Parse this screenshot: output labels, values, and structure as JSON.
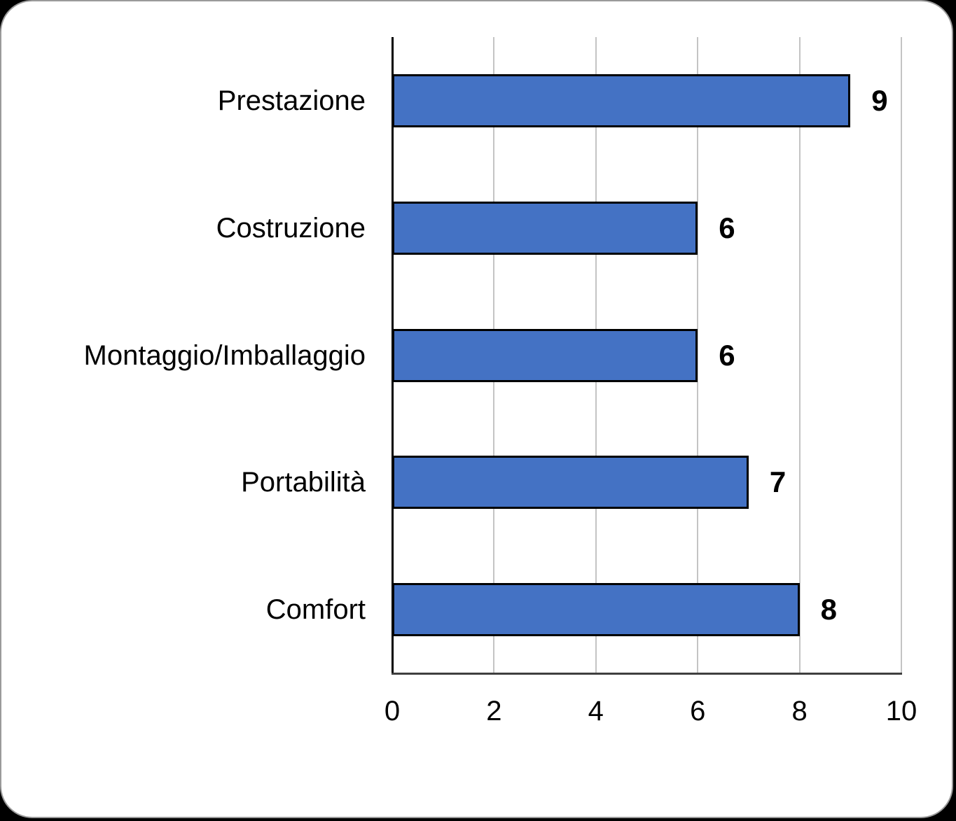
{
  "page": {
    "background_color": "#000000",
    "card_background_color": "#ffffff",
    "card_border_color": "#9a9a9a"
  },
  "chart_data": {
    "type": "bar",
    "orientation": "horizontal",
    "title": "",
    "xlabel": "",
    "ylabel": "",
    "categories": [
      "Prestazione",
      "Costruzione",
      "Montaggio/Imballaggio",
      "Portabilità",
      "Comfort"
    ],
    "values": [
      9,
      6,
      6,
      7,
      8
    ],
    "data_labels": [
      "9",
      "6",
      "6",
      "7",
      "8"
    ],
    "xlim": [
      0,
      10
    ],
    "x_ticks": [
      0,
      2,
      4,
      6,
      8,
      10
    ],
    "grid": true,
    "legend": false,
    "bar_color": "#4472C4",
    "bar_border_color": "#000000",
    "gridline_color": "#c4c4c4",
    "y_axis_color": "#000000",
    "x_axis_color": "#3f3f3f",
    "text_color": "#000000"
  }
}
